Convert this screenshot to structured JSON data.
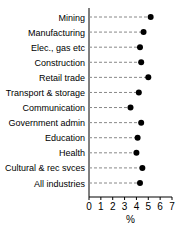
{
  "chart_data": {
    "type": "dot",
    "orientation": "horizontal",
    "categories": [
      "Mining",
      "Manufacturing",
      "Elec., gas etc",
      "Construction",
      "Retail trade",
      "Transport & storage",
      "Communication",
      "Government admin",
      "Education",
      "Health",
      "Cultural & rec svces",
      "All industries"
    ],
    "values": [
      5.2,
      4.6,
      4.3,
      4.4,
      5.0,
      4.2,
      3.5,
      4.4,
      4.1,
      4.0,
      4.5,
      4.3
    ],
    "x_label": "%",
    "xlim": [
      0,
      7
    ],
    "xticks": [
      0,
      1,
      2,
      3,
      4,
      5,
      6,
      7
    ],
    "color": "#000000",
    "marker": "circle",
    "line_style": "dashed",
    "grid": false
  }
}
